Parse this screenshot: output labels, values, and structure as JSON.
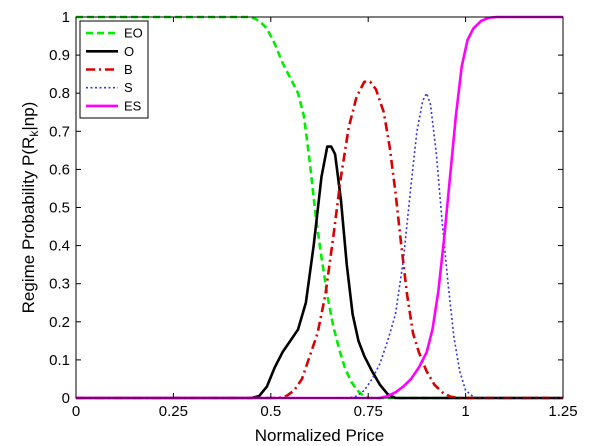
{
  "chart_data": {
    "type": "line",
    "title": "",
    "xlabel": "Normalized Price",
    "ylabel_main": "Regime Probability P(R",
    "ylabel_sub": "k",
    "ylabel_tail": "|np)",
    "xlim": [
      0,
      1.25
    ],
    "ylim": [
      0,
      1
    ],
    "xticks": [
      0,
      0.25,
      0.5,
      0.75,
      1,
      1.25
    ],
    "xtick_labels": [
      "0",
      "0.25",
      "0.5",
      "0.75",
      "1",
      "1.25"
    ],
    "yticks": [
      0,
      0.1,
      0.2,
      0.3,
      0.4,
      0.5,
      0.6,
      0.7,
      0.8,
      0.9,
      1
    ],
    "ytick_labels": [
      "0",
      "0.1",
      "0.2",
      "0.3",
      "0.4",
      "0.5",
      "0.6",
      "0.7",
      "0.8",
      "0.9",
      "1"
    ],
    "grid": false,
    "legend_position": "top-left",
    "series": [
      {
        "name": "EO",
        "color": "#00ee00",
        "dash": "dashed",
        "points": [
          [
            0,
            1
          ],
          [
            0.45,
            1
          ],
          [
            0.47,
            0.99
          ],
          [
            0.49,
            0.97
          ],
          [
            0.51,
            0.93
          ],
          [
            0.53,
            0.88
          ],
          [
            0.55,
            0.84
          ],
          [
            0.57,
            0.8
          ],
          [
            0.585,
            0.74
          ],
          [
            0.6,
            0.62
          ],
          [
            0.615,
            0.48
          ],
          [
            0.63,
            0.37
          ],
          [
            0.645,
            0.27
          ],
          [
            0.66,
            0.19
          ],
          [
            0.675,
            0.13
          ],
          [
            0.69,
            0.08
          ],
          [
            0.705,
            0.045
          ],
          [
            0.72,
            0.022
          ],
          [
            0.735,
            0.008
          ],
          [
            0.75,
            0
          ],
          [
            1.25,
            0
          ]
        ]
      },
      {
        "name": "O",
        "color": "#000000",
        "dash": "solid",
        "points": [
          [
            0,
            0
          ],
          [
            0.45,
            0
          ],
          [
            0.47,
            0.005
          ],
          [
            0.49,
            0.03
          ],
          [
            0.51,
            0.08
          ],
          [
            0.53,
            0.12
          ],
          [
            0.55,
            0.15
          ],
          [
            0.57,
            0.18
          ],
          [
            0.59,
            0.25
          ],
          [
            0.61,
            0.4
          ],
          [
            0.63,
            0.58
          ],
          [
            0.645,
            0.66
          ],
          [
            0.655,
            0.66
          ],
          [
            0.665,
            0.64
          ],
          [
            0.68,
            0.52
          ],
          [
            0.695,
            0.35
          ],
          [
            0.71,
            0.22
          ],
          [
            0.725,
            0.15
          ],
          [
            0.74,
            0.11
          ],
          [
            0.76,
            0.07
          ],
          [
            0.78,
            0.035
          ],
          [
            0.8,
            0.01
          ],
          [
            0.82,
            0
          ],
          [
            1.25,
            0
          ]
        ]
      },
      {
        "name": "B",
        "color": "#dd0000",
        "dash": "dashdot",
        "points": [
          [
            0,
            0
          ],
          [
            0.52,
            0
          ],
          [
            0.54,
            0.005
          ],
          [
            0.56,
            0.02
          ],
          [
            0.58,
            0.05
          ],
          [
            0.6,
            0.11
          ],
          [
            0.62,
            0.17
          ],
          [
            0.64,
            0.27
          ],
          [
            0.66,
            0.42
          ],
          [
            0.68,
            0.58
          ],
          [
            0.7,
            0.71
          ],
          [
            0.72,
            0.79
          ],
          [
            0.74,
            0.83
          ],
          [
            0.755,
            0.83
          ],
          [
            0.77,
            0.81
          ],
          [
            0.79,
            0.75
          ],
          [
            0.805,
            0.66
          ],
          [
            0.82,
            0.54
          ],
          [
            0.835,
            0.4
          ],
          [
            0.85,
            0.27
          ],
          [
            0.865,
            0.17
          ],
          [
            0.88,
            0.12
          ],
          [
            0.9,
            0.07
          ],
          [
            0.92,
            0.035
          ],
          [
            0.94,
            0.015
          ],
          [
            0.96,
            0.004
          ],
          [
            0.98,
            0
          ],
          [
            1.25,
            0
          ]
        ]
      },
      {
        "name": "S",
        "color": "#3333ee",
        "dash": "dotted",
        "points": [
          [
            0,
            0
          ],
          [
            0.7,
            0
          ],
          [
            0.72,
            0.005
          ],
          [
            0.74,
            0.02
          ],
          [
            0.76,
            0.05
          ],
          [
            0.78,
            0.09
          ],
          [
            0.8,
            0.15
          ],
          [
            0.82,
            0.22
          ],
          [
            0.84,
            0.36
          ],
          [
            0.86,
            0.56
          ],
          [
            0.875,
            0.7
          ],
          [
            0.89,
            0.78
          ],
          [
            0.9,
            0.8
          ],
          [
            0.91,
            0.77
          ],
          [
            0.925,
            0.64
          ],
          [
            0.94,
            0.46
          ],
          [
            0.955,
            0.3
          ],
          [
            0.97,
            0.16
          ],
          [
            0.985,
            0.07
          ],
          [
            1.0,
            0.02
          ],
          [
            1.02,
            0.003
          ],
          [
            1.04,
            0
          ],
          [
            1.25,
            0
          ]
        ]
      },
      {
        "name": "ES",
        "color": "#ff00ff",
        "dash": "solid",
        "points": [
          [
            0,
            0
          ],
          [
            0.78,
            0
          ],
          [
            0.8,
            0.005
          ],
          [
            0.82,
            0.015
          ],
          [
            0.84,
            0.03
          ],
          [
            0.86,
            0.05
          ],
          [
            0.88,
            0.08
          ],
          [
            0.9,
            0.12
          ],
          [
            0.915,
            0.18
          ],
          [
            0.93,
            0.28
          ],
          [
            0.945,
            0.42
          ],
          [
            0.96,
            0.58
          ],
          [
            0.975,
            0.74
          ],
          [
            0.99,
            0.87
          ],
          [
            1.005,
            0.94
          ],
          [
            1.02,
            0.97
          ],
          [
            1.04,
            0.99
          ],
          [
            1.06,
            0.998
          ],
          [
            1.08,
            1
          ],
          [
            1.25,
            1
          ]
        ]
      }
    ]
  }
}
